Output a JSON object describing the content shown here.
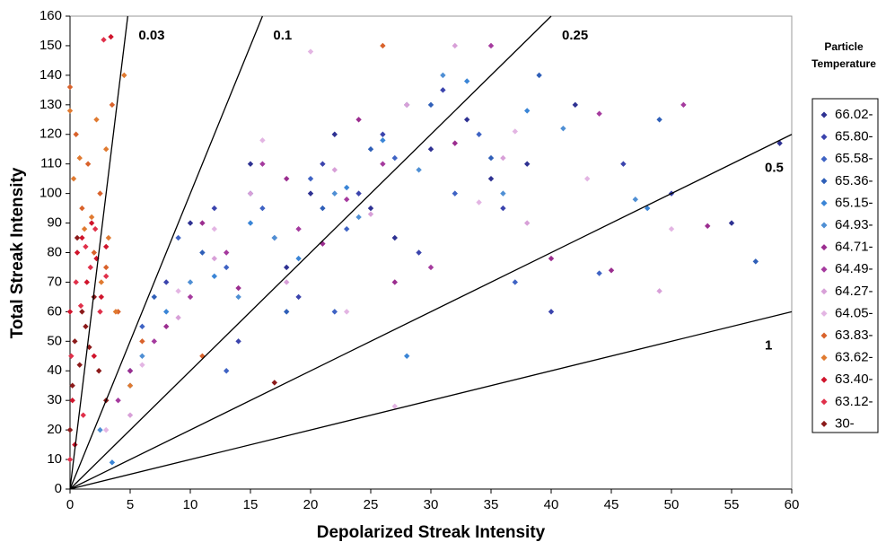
{
  "chart_data": {
    "type": "scatter",
    "x_label": "Depolarized Streak Intensity",
    "y_label": "Total Streak Intensity",
    "legend_title": [
      "Particle",
      "Temperature"
    ],
    "legend": "right",
    "grid": false,
    "xlim": [
      0,
      60
    ],
    "xticks": [
      0,
      5,
      10,
      15,
      20,
      25,
      30,
      35,
      40,
      45,
      50,
      55,
      60
    ],
    "ylim": [
      0,
      160
    ],
    "yticks": [
      0,
      10,
      20,
      30,
      40,
      50,
      60,
      70,
      80,
      90,
      100,
      110,
      120,
      130,
      140,
      150,
      160
    ],
    "ratio_lines": [
      0.03,
      0.1,
      0.25,
      0.5,
      1
    ],
    "series": [
      {
        "name": "66.02-",
        "color": "#2e3192",
        "x": [
          10,
          15,
          20,
          22,
          25,
          28,
          30,
          33,
          35,
          38,
          42,
          55,
          59,
          18,
          27
        ],
        "values": [
          90,
          110,
          100,
          120,
          95,
          130,
          115,
          125,
          105,
          110,
          130,
          90,
          117,
          75,
          85
        ]
      },
      {
        "name": "65.80-",
        "color": "#3b44ad",
        "x": [
          8,
          12,
          17,
          21,
          24,
          26,
          29,
          31,
          36,
          40,
          46,
          50,
          14,
          19
        ],
        "values": [
          70,
          95,
          85,
          110,
          100,
          120,
          80,
          135,
          95,
          60,
          110,
          100,
          50,
          65
        ]
      },
      {
        "name": "65.58-",
        "color": "#3f63c4",
        "x": [
          6,
          9,
          13,
          16,
          20,
          23,
          27,
          32,
          34,
          37,
          44,
          13,
          22
        ],
        "values": [
          55,
          85,
          75,
          95,
          105,
          88,
          112,
          100,
          120,
          70,
          73,
          40,
          60
        ]
      },
      {
        "name": "65.36-",
        "color": "#2f5fb8",
        "x": [
          7,
          11,
          15,
          18,
          21,
          25,
          30,
          35,
          39,
          49,
          57,
          5
        ],
        "values": [
          65,
          80,
          100,
          60,
          95,
          115,
          130,
          112,
          140,
          125,
          77,
          40
        ]
      },
      {
        "name": "65.15-",
        "color": "#3a85d6",
        "x": [
          5,
          8,
          12,
          15,
          19,
          23,
          26,
          28,
          33,
          38,
          48,
          3.5
        ],
        "values": [
          35,
          60,
          72,
          90,
          78,
          102,
          118,
          45,
          138,
          128,
          95,
          9
        ]
      },
      {
        "name": "64.93-",
        "color": "#4f8fd4",
        "x": [
          6,
          10,
          14,
          17,
          22,
          24,
          29,
          31,
          36,
          41,
          47,
          2.5
        ],
        "values": [
          45,
          70,
          65,
          85,
          100,
          92,
          108,
          140,
          100,
          122,
          98,
          20
        ]
      },
      {
        "name": "64.71-",
        "color": "#9b2d8f",
        "x": [
          5,
          8,
          11,
          14,
          18,
          21,
          24,
          27,
          32,
          40,
          45,
          53
        ],
        "values": [
          40,
          55,
          90,
          68,
          105,
          83,
          125,
          70,
          117,
          78,
          74,
          89
        ]
      },
      {
        "name": "64.49-",
        "color": "#a53a9e",
        "x": [
          4,
          7,
          10,
          13,
          16,
          19,
          23,
          26,
          30,
          35,
          44,
          51
        ],
        "values": [
          30,
          50,
          65,
          80,
          110,
          88,
          98,
          110,
          75,
          150,
          127,
          130
        ]
      },
      {
        "name": "64.27-",
        "color": "#d8a0d8",
        "x": [
          5,
          9,
          12,
          15,
          18,
          22,
          25,
          28,
          32,
          36,
          38,
          49
        ],
        "values": [
          25,
          58,
          78,
          100,
          70,
          108,
          93,
          130,
          150,
          112,
          90,
          67
        ]
      },
      {
        "name": "64.05-",
        "color": "#e3b5e3",
        "x": [
          3,
          6,
          9,
          12,
          16,
          20,
          23,
          27,
          34,
          37,
          43,
          50
        ],
        "values": [
          20,
          42,
          67,
          88,
          118,
          148,
          60,
          28,
          97,
          121,
          105,
          88
        ]
      },
      {
        "name": "63.83-",
        "color": "#d9622b",
        "x": [
          0,
          0.5,
          1,
          1.5,
          2,
          2.5,
          3,
          3.5,
          4,
          6,
          11,
          26
        ],
        "values": [
          136,
          120,
          95,
          110,
          80,
          100,
          75,
          130,
          60,
          50,
          45,
          150
        ]
      },
      {
        "name": "63.62-",
        "color": "#e07a30",
        "x": [
          0,
          0.3,
          0.8,
          1.2,
          1.8,
          2.2,
          2.6,
          3,
          3.2,
          3.8,
          5,
          4.5
        ],
        "values": [
          128,
          105,
          112,
          88,
          92,
          125,
          70,
          115,
          85,
          60,
          35,
          140
        ]
      },
      {
        "name": "63.40-",
        "color": "#d0142c",
        "x": [
          0,
          0.2,
          0.6,
          1,
          1.4,
          1.8,
          2.2,
          2.6,
          3,
          3.4,
          0.4,
          2
        ],
        "values": [
          60,
          30,
          80,
          85,
          70,
          90,
          78,
          65,
          82,
          153,
          15,
          45
        ]
      },
      {
        "name": "63.12-",
        "color": "#e0304a",
        "x": [
          0,
          0.1,
          0.5,
          0.9,
          1.3,
          1.7,
          2.1,
          2.5,
          3,
          2.8,
          1.1
        ],
        "values": [
          10,
          45,
          70,
          62,
          82,
          75,
          88,
          60,
          72,
          152,
          25
        ]
      },
      {
        "name": "30-",
        "color": "#8b1a1a",
        "x": [
          0,
          0.2,
          0.4,
          0.8,
          1,
          1.3,
          1.6,
          2,
          2.4,
          3,
          0.6,
          17
        ],
        "values": [
          20,
          35,
          50,
          42,
          60,
          55,
          48,
          65,
          40,
          30,
          85,
          36
        ]
      }
    ]
  }
}
